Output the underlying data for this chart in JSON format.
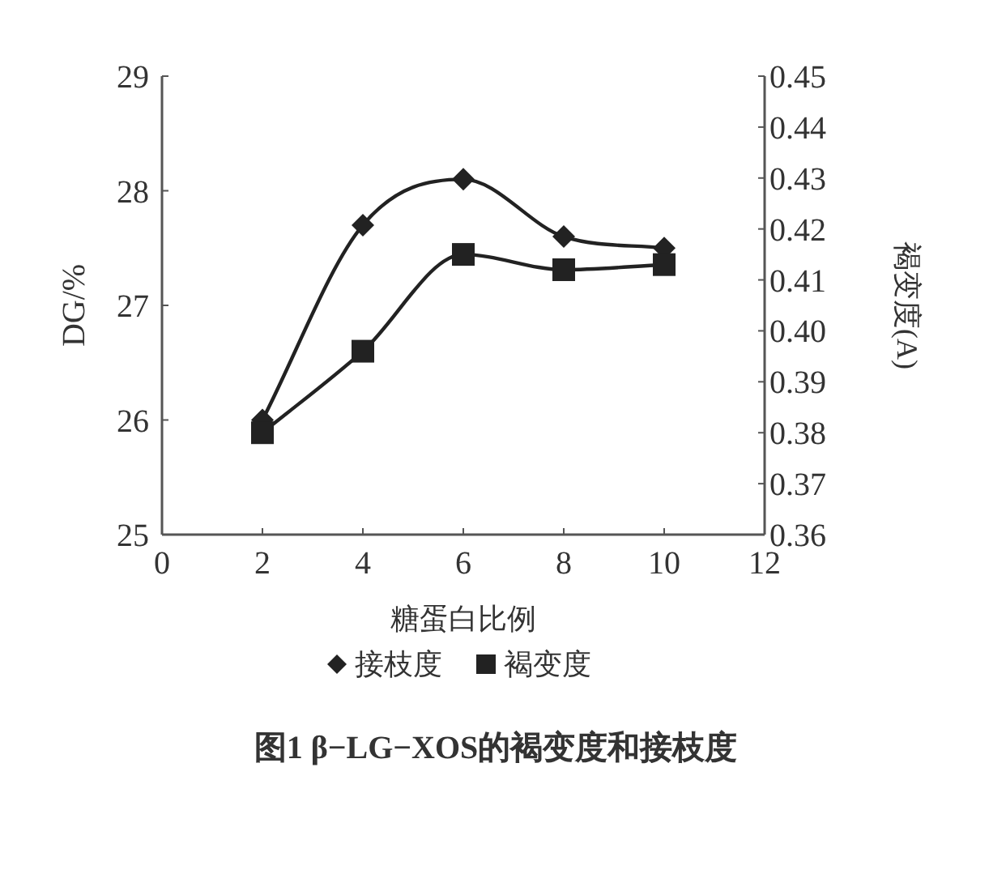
{
  "chart_data": {
    "type": "line",
    "xlabel": "糖蛋白比例",
    "ylabel": "DG/%",
    "y2label": "褐变度(A)",
    "x": [
      2,
      4,
      6,
      8,
      10
    ],
    "series": [
      {
        "name": "接枝度",
        "color": "#222222",
        "marker": "diamond",
        "values": [
          26.0,
          27.7,
          28.1,
          27.6,
          27.5
        ]
      },
      {
        "name": "褐变度",
        "color": "#222222",
        "marker": "square",
        "axis": "y2",
        "values": [
          0.38,
          0.396,
          0.415,
          0.412,
          0.413
        ]
      }
    ],
    "xlim": [
      0,
      12
    ],
    "xticks": [
      0,
      2,
      4,
      6,
      8,
      10,
      12
    ],
    "ylim": [
      25,
      29
    ],
    "yticks": [
      25,
      26,
      27,
      28,
      29
    ],
    "y2lim": [
      0.36,
      0.45
    ],
    "y2ticks": [
      0.36,
      0.37,
      0.38,
      0.39,
      {
        "value": 0.4,
        "label": "0.40"
      },
      0.41,
      0.42,
      0.43,
      0.44,
      0.45
    ],
    "grid": false,
    "legend": "bottom",
    "annotations": [
      "图1  β−LG−XOS的褐变度和接枝度"
    ]
  }
}
